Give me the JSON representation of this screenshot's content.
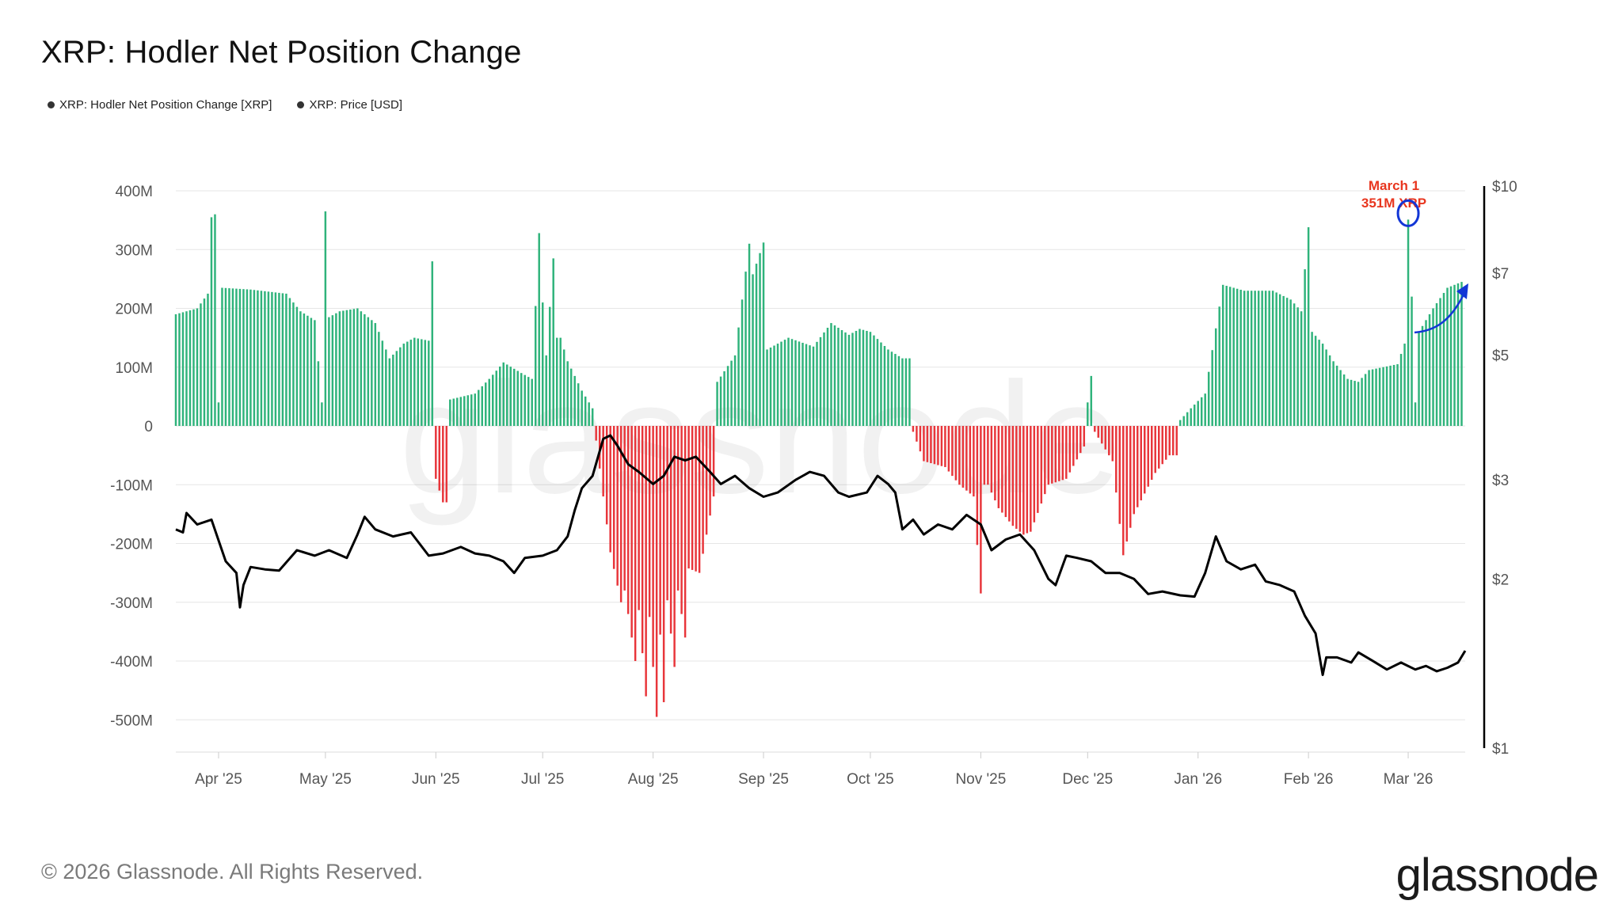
{
  "title": "XRP: Hodler Net Position Change",
  "legend": [
    {
      "label": "XRP: Hodler Net Position Change [XRP]"
    },
    {
      "label": "XRP: Price [USD]"
    }
  ],
  "footer": "© 2026 Glassnode. All Rights Reserved.",
  "brand": "glassnode",
  "watermark": "glassnode",
  "annotation": {
    "line1": "March 1",
    "line2": "351M XRP"
  },
  "colors": {
    "positive": "#2fb37b",
    "negative": "#e8353a",
    "price": "#000000",
    "annotation_text": "#e8361f",
    "annotation_marker": "#1236d6",
    "grid": "#e6e6e6",
    "axis_text": "#555555"
  },
  "chart_data": {
    "type": "bar",
    "title": "XRP: Hodler Net Position Change",
    "x_tick_labels": [
      "Apr '25",
      "May '25",
      "Jun '25",
      "Jul '25",
      "Aug '25",
      "Sep '25",
      "Oct '25",
      "Nov '25",
      "Dec '25",
      "Jan '26",
      "Feb '26",
      "Mar '26"
    ],
    "y_left": {
      "ticks": [
        400,
        300,
        200,
        100,
        0,
        -100,
        -200,
        -300,
        -400,
        -500
      ],
      "tick_labels": [
        "400M",
        "300M",
        "200M",
        "100M",
        "0",
        "-100M",
        "-200M",
        "-300M",
        "-400M",
        "-500M"
      ],
      "range": [
        -550,
        400
      ],
      "unit": "M XRP"
    },
    "y_right": {
      "scale": "log",
      "ticks": [
        10,
        7,
        5,
        3,
        2,
        1
      ],
      "tick_labels": [
        "$10",
        "$7",
        "$5",
        "$3",
        "$2",
        "$1"
      ],
      "range": [
        1,
        10
      ]
    },
    "grid": true,
    "legend_position": "top-left",
    "series": [
      {
        "name": "XRP: Hodler Net Position Change [XRP]",
        "kind": "bar",
        "unit": "M XRP",
        "points": [
          [
            "2025-03-20",
            190
          ],
          [
            "2025-03-26",
            200
          ],
          [
            "2025-03-29",
            225
          ],
          [
            "2025-03-30",
            355
          ],
          [
            "2025-03-31",
            360
          ],
          [
            "2025-04-01",
            40
          ],
          [
            "2025-04-02",
            235
          ],
          [
            "2025-04-10",
            232
          ],
          [
            "2025-04-20",
            225
          ],
          [
            "2025-04-24",
            195
          ],
          [
            "2025-04-28",
            180
          ],
          [
            "2025-04-30",
            40
          ],
          [
            "2025-05-01",
            365
          ],
          [
            "2025-05-02",
            185
          ],
          [
            "2025-05-05",
            195
          ],
          [
            "2025-05-10",
            200
          ],
          [
            "2025-05-15",
            175
          ],
          [
            "2025-05-19",
            115
          ],
          [
            "2025-05-23",
            140
          ],
          [
            "2025-05-26",
            150
          ],
          [
            "2025-05-30",
            145
          ],
          [
            "2025-05-31",
            280
          ],
          [
            "2025-06-01",
            -90
          ],
          [
            "2025-06-03",
            -130
          ],
          [
            "2025-06-05",
            45
          ],
          [
            "2025-06-12",
            55
          ],
          [
            "2025-06-16",
            80
          ],
          [
            "2025-06-20",
            108
          ],
          [
            "2025-06-25",
            90
          ],
          [
            "2025-06-28",
            80
          ],
          [
            "2025-06-30",
            328
          ],
          [
            "2025-07-01",
            210
          ],
          [
            "2025-07-02",
            120
          ],
          [
            "2025-07-04",
            285
          ],
          [
            "2025-07-06",
            150
          ],
          [
            "2025-07-08",
            110
          ],
          [
            "2025-07-12",
            60
          ],
          [
            "2025-07-15",
            30
          ],
          [
            "2025-07-16",
            -25
          ],
          [
            "2025-07-20",
            -215
          ],
          [
            "2025-07-23",
            -300
          ],
          [
            "2025-07-27",
            -400
          ],
          [
            "2025-07-30",
            -460
          ],
          [
            "2025-08-02",
            -495
          ],
          [
            "2025-08-04",
            -470
          ],
          [
            "2025-08-07",
            -410
          ],
          [
            "2025-08-10",
            -360
          ],
          [
            "2025-08-14",
            -250
          ],
          [
            "2025-08-18",
            -120
          ],
          [
            "2025-08-19",
            75
          ],
          [
            "2025-08-24",
            120
          ],
          [
            "2025-08-28",
            310
          ],
          [
            "2025-09-01",
            312
          ],
          [
            "2025-09-02",
            130
          ],
          [
            "2025-09-08",
            150
          ],
          [
            "2025-09-15",
            135
          ],
          [
            "2025-09-20",
            175
          ],
          [
            "2025-09-25",
            155
          ],
          [
            "2025-09-28",
            165
          ],
          [
            "2025-10-01",
            160
          ],
          [
            "2025-10-06",
            130
          ],
          [
            "2025-10-10",
            115
          ],
          [
            "2025-10-13",
            -10
          ],
          [
            "2025-10-16",
            -60
          ],
          [
            "2025-10-22",
            -70
          ],
          [
            "2025-10-26",
            -100
          ],
          [
            "2025-10-30",
            -120
          ],
          [
            "2025-11-01",
            -285
          ],
          [
            "2025-11-03",
            -100
          ],
          [
            "2025-11-06",
            -140
          ],
          [
            "2025-11-10",
            -170
          ],
          [
            "2025-11-13",
            -185
          ],
          [
            "2025-11-15",
            -180
          ],
          [
            "2025-11-20",
            -100
          ],
          [
            "2025-11-25",
            -90
          ],
          [
            "2025-11-30",
            -35
          ],
          [
            "2025-12-01",
            40
          ],
          [
            "2025-12-02",
            85
          ],
          [
            "2025-12-03",
            -10
          ],
          [
            "2025-12-08",
            -60
          ],
          [
            "2025-12-11",
            -220
          ],
          [
            "2025-12-14",
            -150
          ],
          [
            "2025-12-20",
            -80
          ],
          [
            "2025-12-24",
            -50
          ],
          [
            "2025-12-27",
            10
          ],
          [
            "2025-12-30",
            30
          ],
          [
            "2026-01-03",
            55
          ],
          [
            "2026-01-08",
            240
          ],
          [
            "2026-01-14",
            230
          ],
          [
            "2026-01-22",
            230
          ],
          [
            "2026-01-27",
            215
          ],
          [
            "2026-01-30",
            195
          ],
          [
            "2026-02-01",
            338
          ],
          [
            "2026-02-02",
            160
          ],
          [
            "2026-02-05",
            140
          ],
          [
            "2026-02-08",
            110
          ],
          [
            "2026-02-12",
            80
          ],
          [
            "2026-02-15",
            75
          ],
          [
            "2026-02-18",
            95
          ],
          [
            "2026-02-22",
            100
          ],
          [
            "2026-02-26",
            105
          ],
          [
            "2026-02-28",
            140
          ],
          [
            "2026-03-01",
            351
          ],
          [
            "2026-03-02",
            220
          ],
          [
            "2026-03-03",
            40
          ],
          [
            "2026-03-04",
            160
          ],
          [
            "2026-03-08",
            200
          ],
          [
            "2026-03-12",
            235
          ],
          [
            "2026-03-16",
            245
          ]
        ]
      },
      {
        "name": "XRP: Price [USD]",
        "kind": "line",
        "unit": "USD",
        "axis": "right",
        "points": [
          [
            "2025-03-20",
            2.45
          ],
          [
            "2025-03-22",
            2.42
          ],
          [
            "2025-03-23",
            2.62
          ],
          [
            "2025-03-26",
            2.5
          ],
          [
            "2025-03-30",
            2.55
          ],
          [
            "2025-04-03",
            2.15
          ],
          [
            "2025-04-06",
            2.05
          ],
          [
            "2025-04-07",
            1.78
          ],
          [
            "2025-04-08",
            1.95
          ],
          [
            "2025-04-10",
            2.1
          ],
          [
            "2025-04-14",
            2.08
          ],
          [
            "2025-04-18",
            2.07
          ],
          [
            "2025-04-23",
            2.25
          ],
          [
            "2025-04-28",
            2.2
          ],
          [
            "2025-05-02",
            2.25
          ],
          [
            "2025-05-07",
            2.18
          ],
          [
            "2025-05-10",
            2.4
          ],
          [
            "2025-05-12",
            2.58
          ],
          [
            "2025-05-15",
            2.45
          ],
          [
            "2025-05-20",
            2.38
          ],
          [
            "2025-05-25",
            2.42
          ],
          [
            "2025-05-30",
            2.2
          ],
          [
            "2025-06-03",
            2.22
          ],
          [
            "2025-06-08",
            2.28
          ],
          [
            "2025-06-12",
            2.22
          ],
          [
            "2025-06-16",
            2.2
          ],
          [
            "2025-06-20",
            2.15
          ],
          [
            "2025-06-23",
            2.05
          ],
          [
            "2025-06-26",
            2.18
          ],
          [
            "2025-07-01",
            2.2
          ],
          [
            "2025-07-05",
            2.25
          ],
          [
            "2025-07-08",
            2.38
          ],
          [
            "2025-07-10",
            2.65
          ],
          [
            "2025-07-12",
            2.9
          ],
          [
            "2025-07-15",
            3.05
          ],
          [
            "2025-07-18",
            3.55
          ],
          [
            "2025-07-20",
            3.6
          ],
          [
            "2025-07-22",
            3.45
          ],
          [
            "2025-07-25",
            3.2
          ],
          [
            "2025-07-28",
            3.1
          ],
          [
            "2025-08-01",
            2.95
          ],
          [
            "2025-08-04",
            3.05
          ],
          [
            "2025-08-07",
            3.3
          ],
          [
            "2025-08-10",
            3.25
          ],
          [
            "2025-08-13",
            3.3
          ],
          [
            "2025-08-17",
            3.1
          ],
          [
            "2025-08-20",
            2.95
          ],
          [
            "2025-08-24",
            3.05
          ],
          [
            "2025-08-28",
            2.9
          ],
          [
            "2025-09-01",
            2.8
          ],
          [
            "2025-09-05",
            2.85
          ],
          [
            "2025-09-10",
            3.0
          ],
          [
            "2025-09-14",
            3.1
          ],
          [
            "2025-09-18",
            3.05
          ],
          [
            "2025-09-22",
            2.85
          ],
          [
            "2025-09-25",
            2.8
          ],
          [
            "2025-09-30",
            2.85
          ],
          [
            "2025-10-03",
            3.05
          ],
          [
            "2025-10-06",
            2.95
          ],
          [
            "2025-10-08",
            2.85
          ],
          [
            "2025-10-10",
            2.45
          ],
          [
            "2025-10-13",
            2.55
          ],
          [
            "2025-10-16",
            2.4
          ],
          [
            "2025-10-20",
            2.5
          ],
          [
            "2025-10-24",
            2.45
          ],
          [
            "2025-10-28",
            2.6
          ],
          [
            "2025-11-01",
            2.5
          ],
          [
            "2025-11-04",
            2.25
          ],
          [
            "2025-11-08",
            2.35
          ],
          [
            "2025-11-12",
            2.4
          ],
          [
            "2025-11-16",
            2.25
          ],
          [
            "2025-11-20",
            2.0
          ],
          [
            "2025-11-22",
            1.95
          ],
          [
            "2025-11-25",
            2.2
          ],
          [
            "2025-11-28",
            2.18
          ],
          [
            "2025-12-02",
            2.15
          ],
          [
            "2025-12-06",
            2.05
          ],
          [
            "2025-12-10",
            2.05
          ],
          [
            "2025-12-14",
            2.0
          ],
          [
            "2025-12-18",
            1.88
          ],
          [
            "2025-12-22",
            1.9
          ],
          [
            "2025-12-27",
            1.87
          ],
          [
            "2025-12-31",
            1.86
          ],
          [
            "2026-01-03",
            2.05
          ],
          [
            "2026-01-06",
            2.38
          ],
          [
            "2026-01-09",
            2.15
          ],
          [
            "2026-01-13",
            2.08
          ],
          [
            "2026-01-17",
            2.12
          ],
          [
            "2026-01-20",
            1.98
          ],
          [
            "2026-01-24",
            1.95
          ],
          [
            "2026-01-28",
            1.9
          ],
          [
            "2026-01-31",
            1.72
          ],
          [
            "2026-02-03",
            1.6
          ],
          [
            "2026-02-05",
            1.35
          ],
          [
            "2026-02-06",
            1.45
          ],
          [
            "2026-02-09",
            1.45
          ],
          [
            "2026-02-13",
            1.42
          ],
          [
            "2026-02-15",
            1.48
          ],
          [
            "2026-02-19",
            1.43
          ],
          [
            "2026-02-23",
            1.38
          ],
          [
            "2026-02-27",
            1.42
          ],
          [
            "2026-03-03",
            1.38
          ],
          [
            "2026-03-06",
            1.4
          ],
          [
            "2026-03-09",
            1.37
          ],
          [
            "2026-03-12",
            1.39
          ],
          [
            "2026-03-15",
            1.42
          ],
          [
            "2026-03-17",
            1.49
          ]
        ]
      }
    ],
    "annotations": [
      {
        "date": "2026-03-01",
        "value": 351,
        "text": [
          "March 1",
          "351M XRP"
        ]
      }
    ]
  }
}
